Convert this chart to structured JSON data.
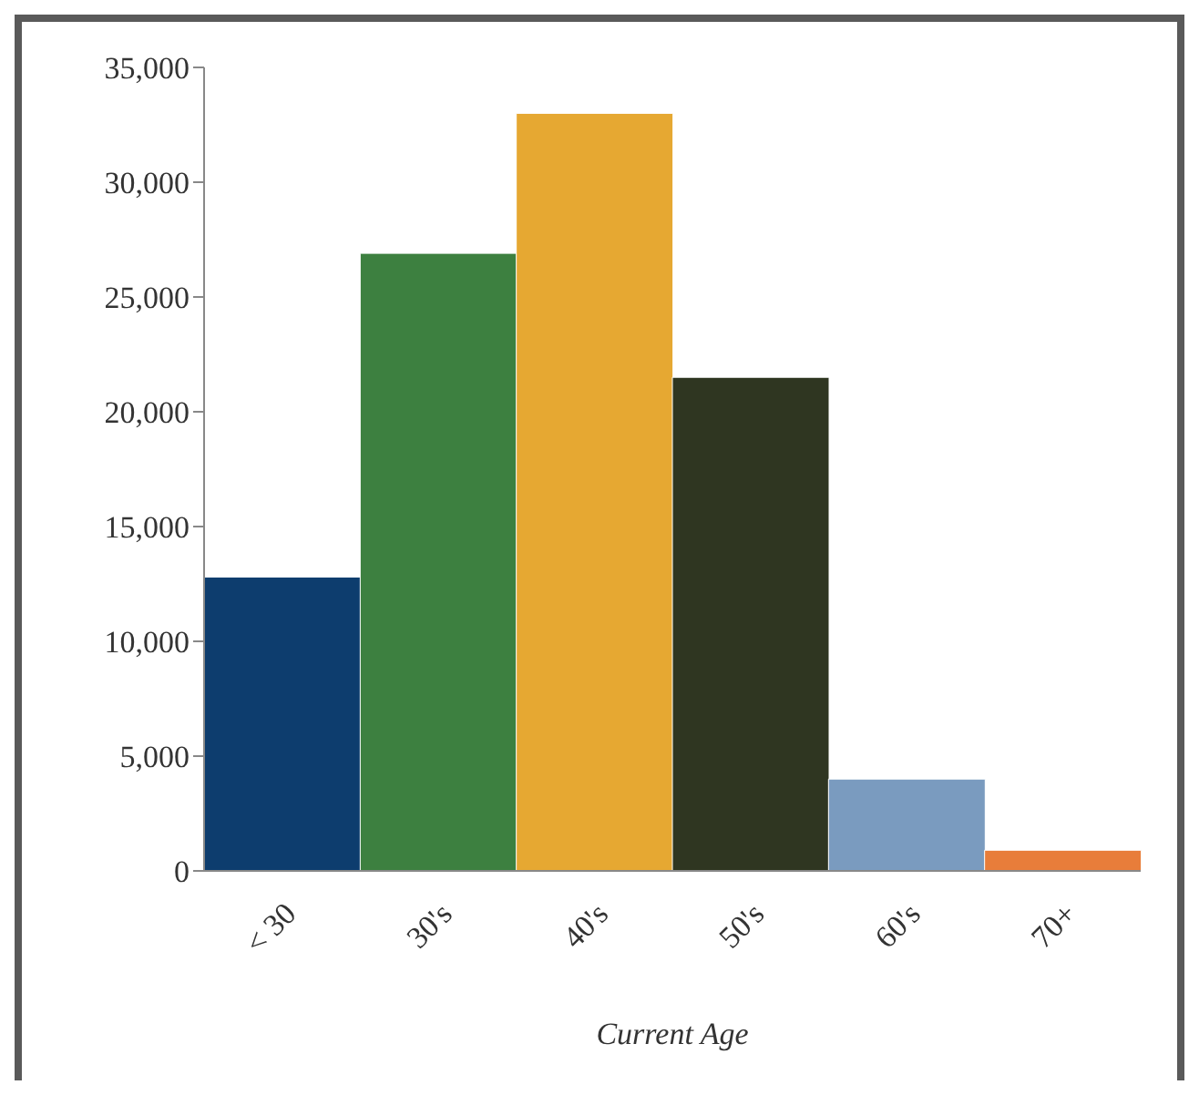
{
  "chart_data": {
    "type": "bar",
    "xlabel": "Current Age",
    "categories": [
      "< 30",
      "30's",
      "40's",
      "50's",
      "60's",
      "70+"
    ],
    "values": [
      12800,
      26900,
      33000,
      21500,
      4000,
      900
    ],
    "colors": [
      "#0d3d6e",
      "#3d8040",
      "#e6a832",
      "#2f3621",
      "#7a9bbf",
      "#e87d3a"
    ],
    "ylim": [
      0,
      35000
    ],
    "yticks": [
      0,
      {
        "value": 5000,
        "label": "5,000"
      },
      {
        "value": 10000,
        "label": "10,000"
      },
      {
        "value": 15000,
        "label": "15,000"
      },
      {
        "value": 20000,
        "label": "20,000"
      },
      {
        "value": 25000,
        "label": "25,000"
      },
      {
        "value": 30000,
        "label": "30,000"
      },
      {
        "value": 35000,
        "label": "35,000"
      }
    ],
    "grid": false,
    "legend": false
  }
}
